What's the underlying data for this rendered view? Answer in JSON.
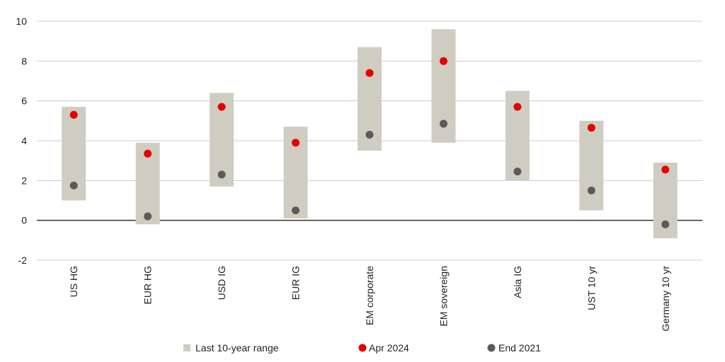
{
  "chart_data": {
    "type": "range-dot",
    "categories": [
      "US HG",
      "EUR HG",
      "USD IG",
      "EUR IG",
      "EM corporate",
      "EM sovereign",
      "Asia IG",
      "UST 10 yr",
      "Germany 10 yr"
    ],
    "range_low": [
      1.0,
      -0.2,
      1.7,
      0.1,
      3.5,
      3.9,
      2.0,
      0.5,
      -0.9
    ],
    "range_high": [
      5.7,
      3.9,
      6.4,
      4.7,
      8.7,
      9.6,
      6.5,
      5.0,
      2.9
    ],
    "series": [
      {
        "name": "Apr 2024",
        "values": [
          5.3,
          3.35,
          5.7,
          3.9,
          7.4,
          8.0,
          5.7,
          4.65,
          2.55
        ]
      },
      {
        "name": "End 2021",
        "values": [
          1.75,
          0.2,
          2.3,
          0.5,
          4.3,
          4.85,
          2.45,
          1.5,
          -0.2
        ]
      }
    ],
    "range_name": "Last 10-year range",
    "yticks": [
      -2,
      0,
      2,
      4,
      6,
      8,
      10
    ],
    "ylim": [
      -2,
      10
    ],
    "grid": true,
    "legend_position": "bottom-center",
    "colors": {
      "range": "#cfcdc2",
      "apr2024": "#e60000",
      "end2021": "#5a5a5a",
      "grid": "#cccccc",
      "baseline": "#333333"
    }
  }
}
